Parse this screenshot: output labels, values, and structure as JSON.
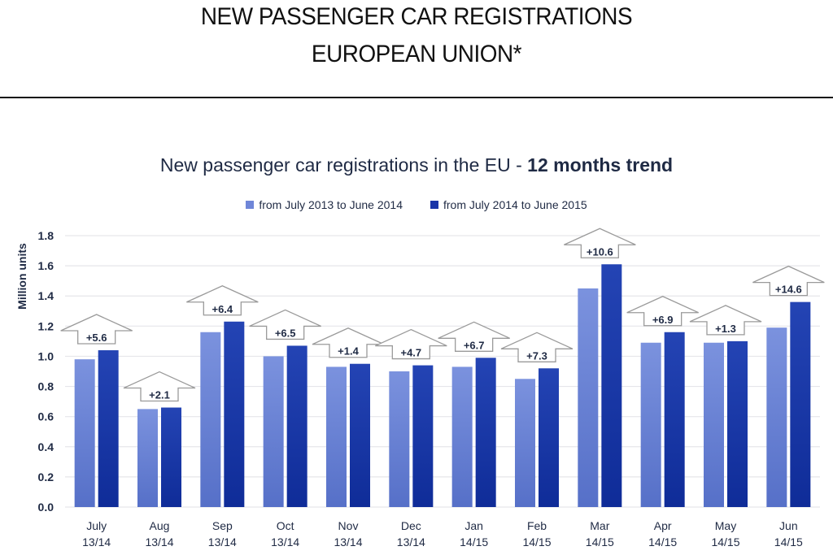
{
  "header": {
    "title_line1": "NEW PASSENGER CAR REGISTRATIONS",
    "title_line2": "EUROPEAN UNION*"
  },
  "chart_data": {
    "type": "bar",
    "title": "New passenger car registrations in the EU - ",
    "title_bold": "12 months trend",
    "xlabel": "",
    "ylabel": "Million units",
    "ylim": [
      0,
      1.8
    ],
    "yticks": [
      "0.0",
      "0.2",
      "0.4",
      "0.6",
      "0.8",
      "1.0",
      "1.2",
      "1.4",
      "1.6",
      "1.8"
    ],
    "ytick_values": [
      0,
      0.2,
      0.4,
      0.6,
      0.8,
      1.0,
      1.2,
      1.4,
      1.6,
      1.8
    ],
    "grid": true,
    "legend_position": "top-center",
    "categories": [
      "July",
      "Aug",
      "Sep",
      "Oct",
      "Nov",
      "Dec",
      "Jan",
      "Feb",
      "Mar",
      "Apr",
      "May",
      "Jun"
    ],
    "category_sublabels": [
      "13/14",
      "13/14",
      "13/14",
      "13/14",
      "13/14",
      "13/14",
      "14/15",
      "14/15",
      "14/15",
      "14/15",
      "14/15",
      "14/15"
    ],
    "series": [
      {
        "name": "from July 2013 to June 2014",
        "color": "#6f86d8",
        "values": [
          0.98,
          0.65,
          1.16,
          1.0,
          0.93,
          0.9,
          0.93,
          0.85,
          1.45,
          1.09,
          1.09,
          1.19
        ]
      },
      {
        "name": "from July 2014 to June 2015",
        "color": "#1a35a8",
        "values": [
          1.04,
          0.66,
          1.23,
          1.07,
          0.95,
          0.94,
          0.99,
          0.92,
          1.61,
          1.16,
          1.1,
          1.36
        ]
      }
    ],
    "annotations": [
      "+5.6",
      "+2.1",
      "+6.4",
      "+6.5",
      "+1.4",
      "+4.7",
      "+6.7",
      "+7.3",
      "+10.6",
      "+6.9",
      "+1.3",
      "+14.6"
    ],
    "annotation_style": "up-arrow"
  }
}
